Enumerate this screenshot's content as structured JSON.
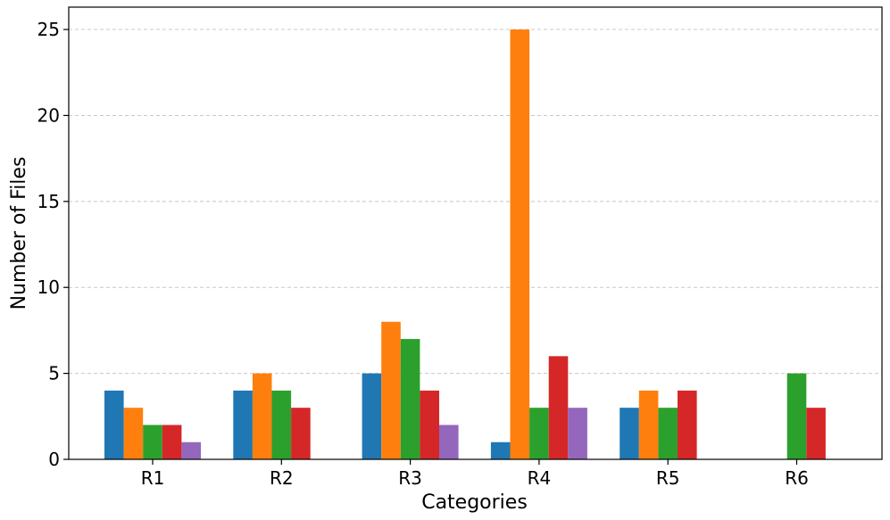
{
  "chart_data": {
    "type": "bar",
    "title": "",
    "xlabel": "Categories",
    "ylabel": "Number of Files",
    "categories": [
      "R1",
      "R2",
      "R3",
      "R4",
      "R5",
      "R6"
    ],
    "series": [
      {
        "color": "#1f77b4",
        "values": [
          4,
          4,
          5,
          1,
          3,
          0
        ]
      },
      {
        "color": "#ff7f0e",
        "values": [
          3,
          5,
          8,
          25,
          4,
          0
        ]
      },
      {
        "color": "#2ca02c",
        "values": [
          2,
          4,
          7,
          3,
          3,
          5
        ]
      },
      {
        "color": "#d62728",
        "values": [
          2,
          3,
          4,
          6,
          4,
          3
        ]
      },
      {
        "color": "#9467bd",
        "values": [
          1,
          0,
          2,
          3,
          0,
          0
        ]
      }
    ],
    "ylim": [
      0,
      26.3
    ],
    "yticks": [
      0,
      5,
      10,
      15,
      20,
      25
    ],
    "grid": "y-dashed",
    "legend": "none"
  }
}
